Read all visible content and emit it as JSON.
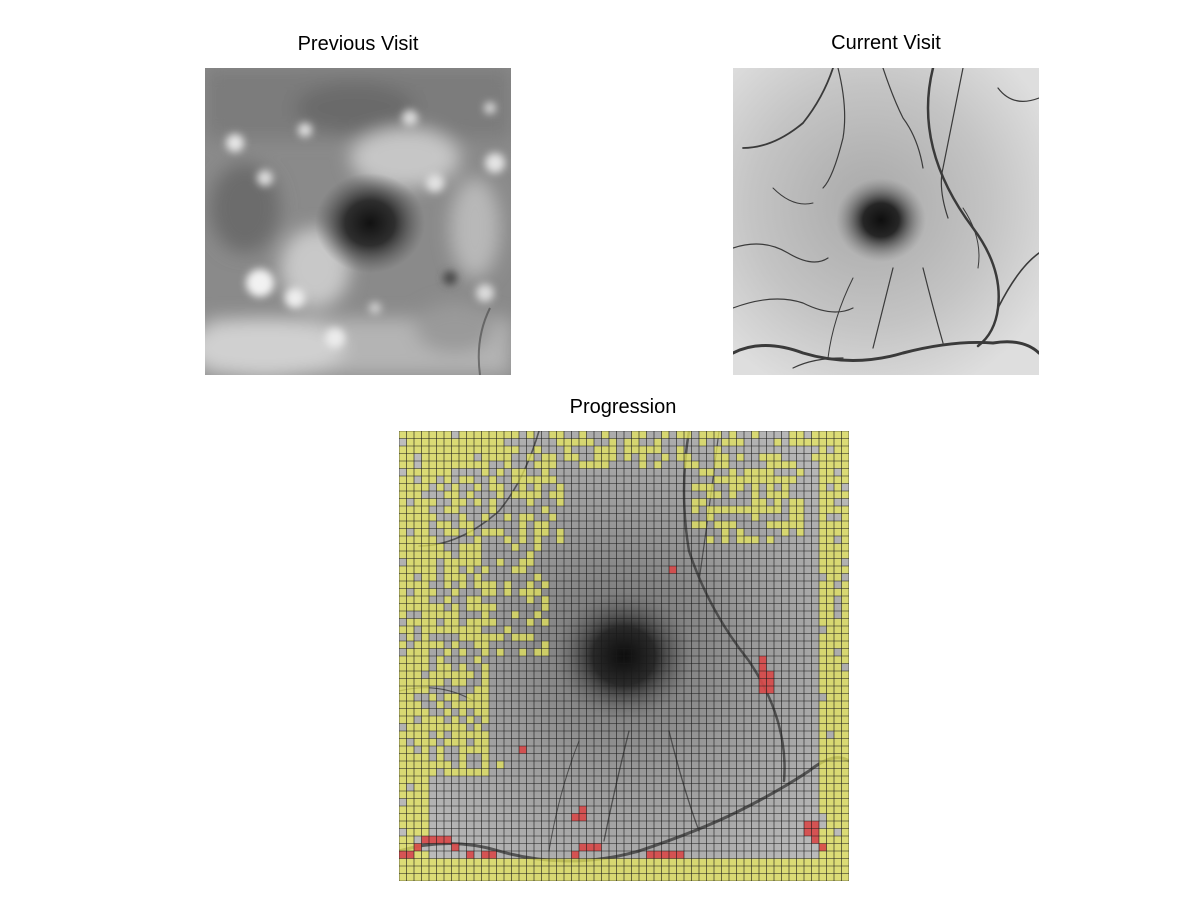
{
  "panels": {
    "previous": {
      "title": "Previous Visit"
    },
    "current": {
      "title": "Current Visit"
    },
    "progression": {
      "title": "Progression"
    }
  },
  "colors": {
    "background": "#ffffff",
    "progression_yellow": "#e8e85a",
    "progression_red": "#d84848",
    "grid_line": "#1a1a1a"
  }
}
